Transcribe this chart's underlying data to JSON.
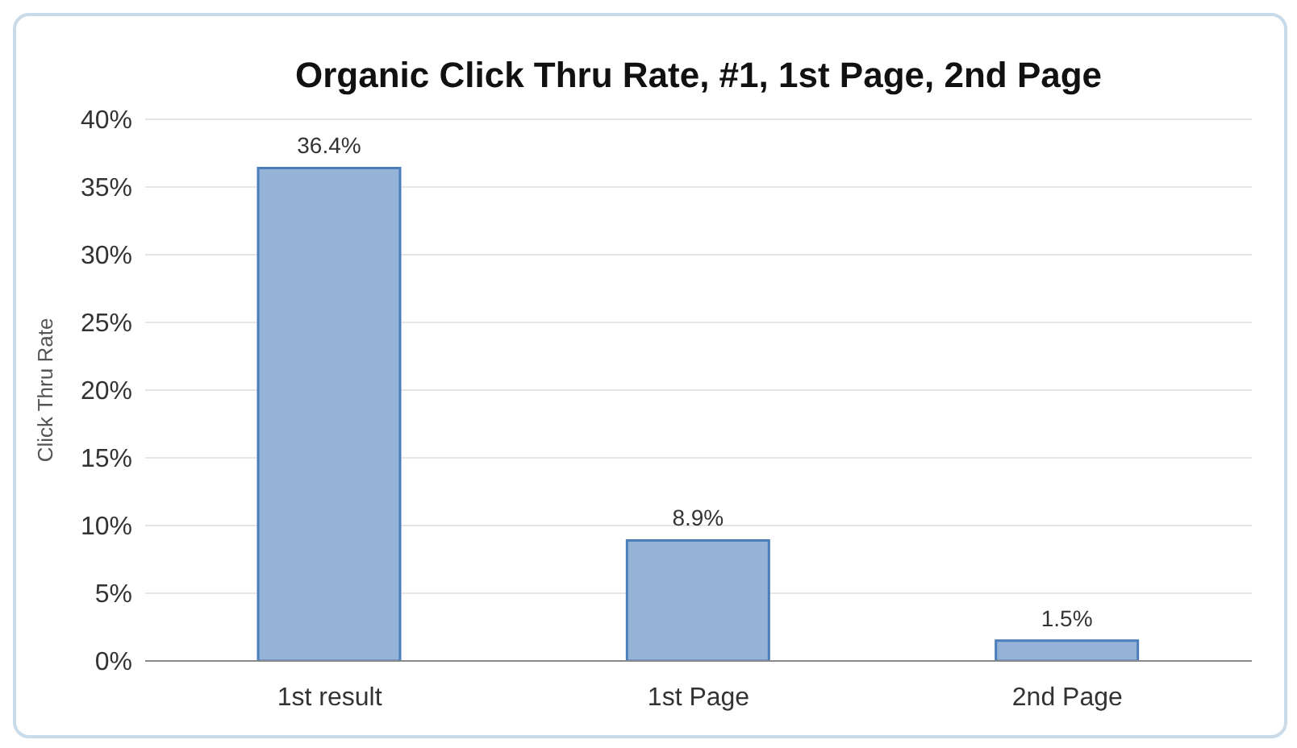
{
  "chart_data": {
    "type": "bar",
    "title": "Organic Click Thru Rate, #1, 1st Page, 2nd Page",
    "ylabel": "Click Thru Rate",
    "categories": [
      "1st result",
      "1st Page",
      "2nd Page"
    ],
    "series": [
      {
        "color": "#95b3d7",
        "values": [
          36.4,
          8.9,
          1.5
        ],
        "value_labels": [
          "36.4%",
          "8.9%",
          "1.5%"
        ]
      }
    ],
    "ylim": [
      0,
      40
    ],
    "yticks": [
      {
        "value": 0,
        "label": "0%"
      },
      {
        "value": 5,
        "label": "5%"
      },
      {
        "value": 10,
        "label": "10%"
      },
      {
        "value": 15,
        "label": "15%"
      },
      {
        "value": 20,
        "label": "20%"
      },
      {
        "value": 25,
        "label": "25%"
      },
      {
        "value": 30,
        "label": "30%"
      },
      {
        "value": 35,
        "label": "35%"
      },
      {
        "value": 40,
        "label": "40%"
      }
    ],
    "grid": "y",
    "legend": false
  }
}
